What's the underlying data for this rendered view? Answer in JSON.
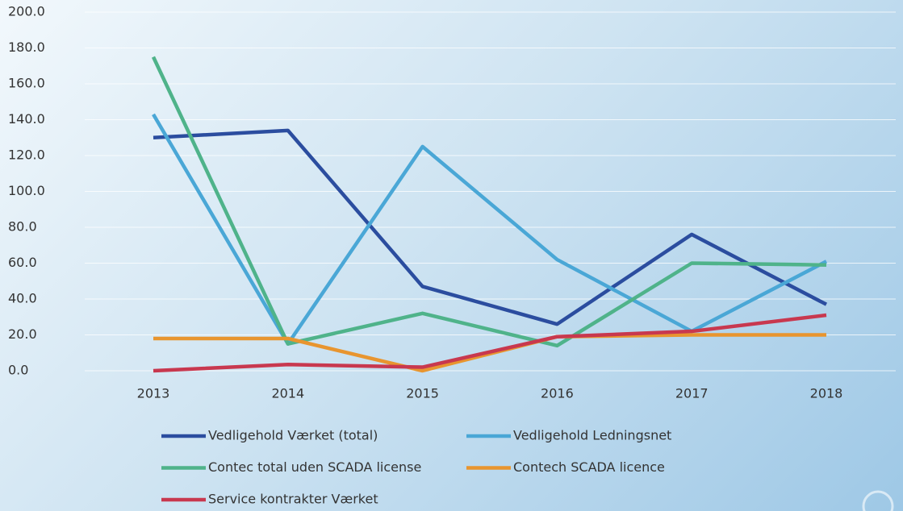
{
  "chart_data": {
    "type": "line",
    "categories": [
      "2013",
      "2014",
      "2015",
      "2016",
      "2017",
      "2018"
    ],
    "series": [
      {
        "name": "Vedligehold Værket (total)",
        "color": "#2b4d9f",
        "values": [
          130,
          134,
          47,
          26,
          76,
          37
        ]
      },
      {
        "name": "Vedligehold Ledningsnet",
        "color": "#4aa7d6",
        "values": [
          143,
          15,
          125,
          62,
          22,
          61
        ]
      },
      {
        "name": "Contec total uden SCADA license",
        "color": "#4fb38a",
        "values": [
          175,
          15,
          32,
          14,
          60,
          59
        ]
      },
      {
        "name": "Contech SCADA licence",
        "color": "#e8952f",
        "values": [
          18,
          18,
          0,
          19,
          20,
          20
        ]
      },
      {
        "name": "Service kontrakter Værket",
        "color": "#c8384f",
        "values": [
          0,
          3.5,
          2,
          19,
          22,
          31
        ]
      }
    ],
    "ylim": [
      0,
      200
    ],
    "yticks": [
      {
        "value": 0,
        "label": "0.0"
      },
      {
        "value": 20,
        "label": "20.0"
      },
      {
        "value": 40,
        "label": "40.0"
      },
      {
        "value": 60,
        "label": "60.0"
      },
      {
        "value": 80,
        "label": "80.0"
      },
      {
        "value": 100,
        "label": "100.0"
      },
      {
        "value": 120,
        "label": "120.0"
      },
      {
        "value": 140,
        "label": "140.0"
      },
      {
        "value": 160,
        "label": "160.0"
      },
      {
        "value": 180,
        "label": "180.0"
      },
      {
        "value": 200,
        "label": "200.0"
      }
    ],
    "grid": true,
    "legend": "bottom"
  }
}
